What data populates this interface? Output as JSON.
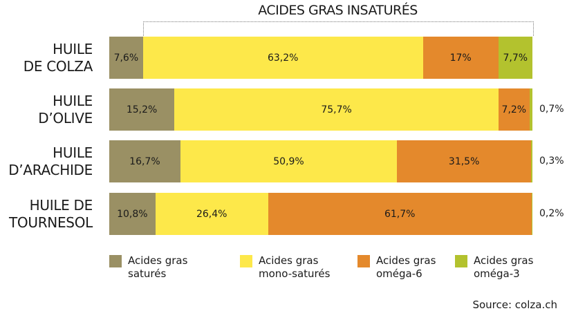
{
  "chart_data": {
    "type": "bar",
    "orientation": "horizontal-stacked",
    "title": "ACIDES GRAS INSATURÉS",
    "categories": [
      "HUILE DE COLZA",
      "HUILE D’OLIVE",
      "HUILE D’ARACHIDE",
      "HUILE DE TOURNESOL"
    ],
    "category_lines": [
      [
        "HUILE",
        "DE COLZA"
      ],
      [
        "HUILE",
        "D’OLIVE"
      ],
      [
        "HUILE",
        "D’ARACHIDE"
      ],
      [
        "HUILE DE",
        "TOURNESOL"
      ]
    ],
    "series": [
      {
        "name": "Acides gras saturés",
        "legend_lines": [
          "Acides gras",
          "saturés"
        ],
        "color": "#9a9064",
        "values": [
          7.6,
          15.2,
          16.7,
          10.8
        ],
        "labels": [
          "7,6%",
          "15,2%",
          "16,7%",
          "10,8%"
        ]
      },
      {
        "name": "Acides gras mono-saturés",
        "legend_lines": [
          "Acides gras",
          "mono-saturés"
        ],
        "color": "#fde84a",
        "values": [
          63.2,
          75.7,
          50.9,
          26.4
        ],
        "labels": [
          "63,2%",
          "75,7%",
          "50,9%",
          "26,4%"
        ]
      },
      {
        "name": "Acides gras oméga-6",
        "legend_lines": [
          "Acides gras",
          "oméga-6"
        ],
        "color": "#e4892c",
        "values": [
          17,
          7.2,
          31.5,
          61.7
        ],
        "labels": [
          "17%",
          "7,2%",
          "31,5%",
          "61,7%"
        ]
      },
      {
        "name": "Acides gras oméga-3",
        "legend_lines": [
          "Acides gras",
          "oméga-3"
        ],
        "color": "#b3c22e",
        "values": [
          7.7,
          0.7,
          0.3,
          0.2
        ],
        "labels": [
          "7,7%",
          "0,7%",
          "0,3%",
          "0,2%"
        ]
      }
    ],
    "legend": "bottom",
    "source": "Source: colza.ch"
  }
}
